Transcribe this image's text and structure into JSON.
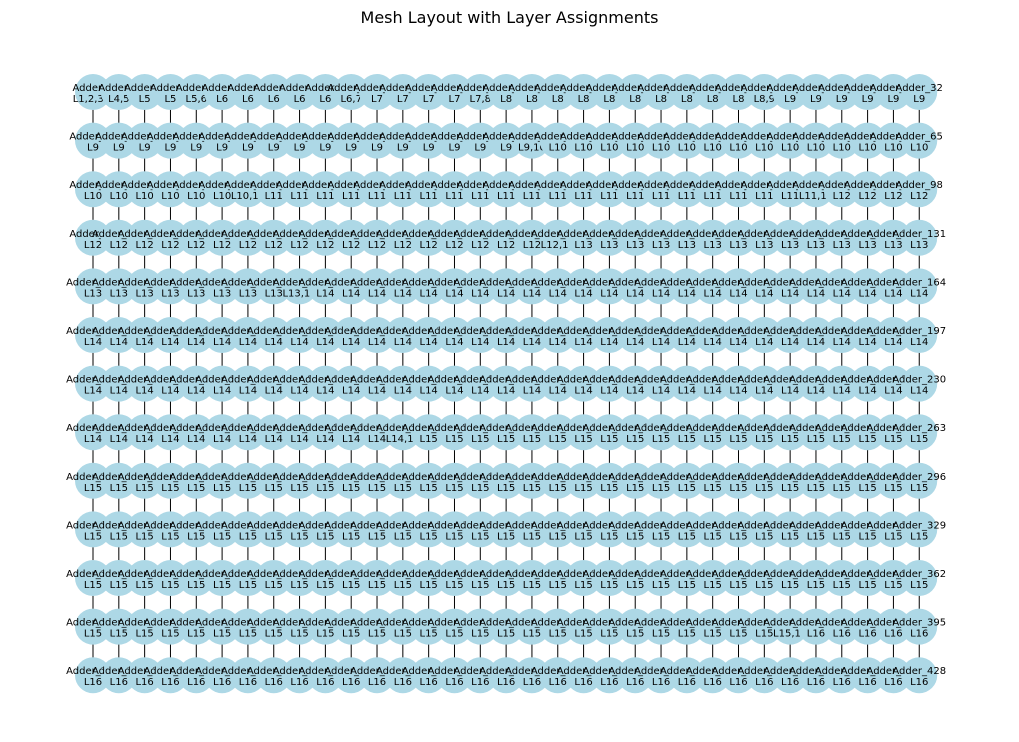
{
  "title": "Mesh Layout with Layer Assignments",
  "node_fill": "#add8e6",
  "grid": {
    "rows": 13,
    "cols": 33
  },
  "rows": [
    {
      "first_name": "Adder_0",
      "last_name": "Adder_32",
      "layers": [
        "L1,2,3,4",
        "L4,5",
        "L5",
        "L5",
        "L5,6",
        "L6",
        "L6",
        "L6",
        "L6",
        "L6",
        "L6,7",
        "L7",
        "L7",
        "L7",
        "L7",
        "L7,8",
        "L8",
        "L8",
        "L8",
        "L8",
        "L8",
        "L8",
        "L8",
        "L8",
        "L8",
        "L8",
        "L8,9",
        "L9",
        "L9",
        "L9",
        "L9",
        "L9",
        "L9"
      ]
    },
    {
      "first_name": "Adder_33",
      "last_name": "Adder_65",
      "layers": [
        "L9",
        "L9",
        "L9",
        "L9",
        "L9",
        "L9",
        "L9",
        "L9",
        "L9",
        "L9",
        "L9",
        "L9",
        "L9",
        "L9",
        "L9",
        "L9",
        "L9",
        "L9,10",
        "L10",
        "L10",
        "L10",
        "L10",
        "L10",
        "L10",
        "L10",
        "L10",
        "L10",
        "L10",
        "L10",
        "L10",
        "L10",
        "L10",
        "L10"
      ]
    },
    {
      "first_name": "Adder_66",
      "last_name": "Adder_98",
      "layers": [
        "L10",
        "L10",
        "L10",
        "L10",
        "L10",
        "L10",
        "L10,11",
        "L11",
        "L11",
        "L11",
        "L11",
        "L11",
        "L11",
        "L11",
        "L11",
        "L11",
        "L11",
        "L11",
        "L11",
        "L11",
        "L11",
        "L11",
        "L11",
        "L11",
        "L11",
        "L11",
        "L11",
        "L11",
        "L11,12",
        "L12",
        "L12",
        "L12",
        "L12"
      ]
    },
    {
      "first_name": "Adder_99",
      "last_name": "Adder_131",
      "layers": [
        "L12",
        "L12",
        "L12",
        "L12",
        "L12",
        "L12",
        "L12",
        "L12",
        "L12",
        "L12",
        "L12",
        "L12",
        "L12",
        "L12",
        "L12",
        "L12",
        "L12",
        "L12",
        "L12,13",
        "L13",
        "L13",
        "L13",
        "L13",
        "L13",
        "L13",
        "L13",
        "L13",
        "L13",
        "L13",
        "L13",
        "L13",
        "L13",
        "L13"
      ]
    },
    {
      "first_name": "Adder_132",
      "last_name": "Adder_164",
      "layers": [
        "L13",
        "L13",
        "L13",
        "L13",
        "L13",
        "L13",
        "L13",
        "L13",
        "L13,14",
        "L14",
        "L14",
        "L14",
        "L14",
        "L14",
        "L14",
        "L14",
        "L14",
        "L14",
        "L14",
        "L14",
        "L14",
        "L14",
        "L14",
        "L14",
        "L14",
        "L14",
        "L14",
        "L14",
        "L14",
        "L14",
        "L14",
        "L14",
        "L14"
      ]
    },
    {
      "first_name": "Adder_165",
      "last_name": "Adder_197",
      "layers": [
        "L14",
        "L14",
        "L14",
        "L14",
        "L14",
        "L14",
        "L14",
        "L14",
        "L14",
        "L14",
        "L14",
        "L14",
        "L14",
        "L14",
        "L14",
        "L14",
        "L14",
        "L14",
        "L14",
        "L14",
        "L14",
        "L14",
        "L14",
        "L14",
        "L14",
        "L14",
        "L14",
        "L14",
        "L14",
        "L14",
        "L14",
        "L14",
        "L14"
      ]
    },
    {
      "first_name": "Adder_198",
      "last_name": "Adder_230",
      "layers": [
        "L14",
        "L14",
        "L14",
        "L14",
        "L14",
        "L14",
        "L14",
        "L14",
        "L14",
        "L14",
        "L14",
        "L14",
        "L14",
        "L14",
        "L14",
        "L14",
        "L14",
        "L14",
        "L14",
        "L14",
        "L14",
        "L14",
        "L14",
        "L14",
        "L14",
        "L14",
        "L14",
        "L14",
        "L14",
        "L14",
        "L14",
        "L14",
        "L14"
      ]
    },
    {
      "first_name": "Adder_231",
      "last_name": "Adder_263",
      "layers": [
        "L14",
        "L14",
        "L14",
        "L14",
        "L14",
        "L14",
        "L14",
        "L14",
        "L14",
        "L14",
        "L14",
        "L14",
        "L14,15",
        "L15",
        "L15",
        "L15",
        "L15",
        "L15",
        "L15",
        "L15",
        "L15",
        "L15",
        "L15",
        "L15",
        "L15",
        "L15",
        "L15",
        "L15",
        "L15",
        "L15",
        "L15",
        "L15",
        "L15"
      ]
    },
    {
      "first_name": "Adder_264",
      "last_name": "Adder_296",
      "layers": [
        "L15",
        "L15",
        "L15",
        "L15",
        "L15",
        "L15",
        "L15",
        "L15",
        "L15",
        "L15",
        "L15",
        "L15",
        "L15",
        "L15",
        "L15",
        "L15",
        "L15",
        "L15",
        "L15",
        "L15",
        "L15",
        "L15",
        "L15",
        "L15",
        "L15",
        "L15",
        "L15",
        "L15",
        "L15",
        "L15",
        "L15",
        "L15",
        "L15"
      ]
    },
    {
      "first_name": "Adder_297",
      "last_name": "Adder_329",
      "layers": [
        "L15",
        "L15",
        "L15",
        "L15",
        "L15",
        "L15",
        "L15",
        "L15",
        "L15",
        "L15",
        "L15",
        "L15",
        "L15",
        "L15",
        "L15",
        "L15",
        "L15",
        "L15",
        "L15",
        "L15",
        "L15",
        "L15",
        "L15",
        "L15",
        "L15",
        "L15",
        "L15",
        "L15",
        "L15",
        "L15",
        "L15",
        "L15",
        "L15"
      ]
    },
    {
      "first_name": "Adder_330",
      "last_name": "Adder_362",
      "layers": [
        "L15",
        "L15",
        "L15",
        "L15",
        "L15",
        "L15",
        "L15",
        "L15",
        "L15",
        "L15",
        "L15",
        "L15",
        "L15",
        "L15",
        "L15",
        "L15",
        "L15",
        "L15",
        "L15",
        "L15",
        "L15",
        "L15",
        "L15",
        "L15",
        "L15",
        "L15",
        "L15",
        "L15",
        "L15",
        "L15",
        "L15",
        "L15",
        "L15"
      ]
    },
    {
      "first_name": "Adder_363",
      "last_name": "Adder_395",
      "layers": [
        "L15",
        "L15",
        "L15",
        "L15",
        "L15",
        "L15",
        "L15",
        "L15",
        "L15",
        "L15",
        "L15",
        "L15",
        "L15",
        "L15",
        "L15",
        "L15",
        "L15",
        "L15",
        "L15",
        "L15",
        "L15",
        "L15",
        "L15",
        "L15",
        "L15",
        "L15",
        "L15",
        "L15,16",
        "L16",
        "L16",
        "L16",
        "L16",
        "L16"
      ]
    },
    {
      "first_name": "Adder_396",
      "last_name": "Adder_428",
      "layers": [
        "L16",
        "L16",
        "L16",
        "L16",
        "L16",
        "L16",
        "L16",
        "L16",
        "L16",
        "L16",
        "L16",
        "L16",
        "L16",
        "L16",
        "L16",
        "L16",
        "L16",
        "L16",
        "L16",
        "L16",
        "L16",
        "L16",
        "L16",
        "L16",
        "L16",
        "L16",
        "L16",
        "L16",
        "L16",
        "L16",
        "L16",
        "L16",
        "L16"
      ]
    }
  ]
}
